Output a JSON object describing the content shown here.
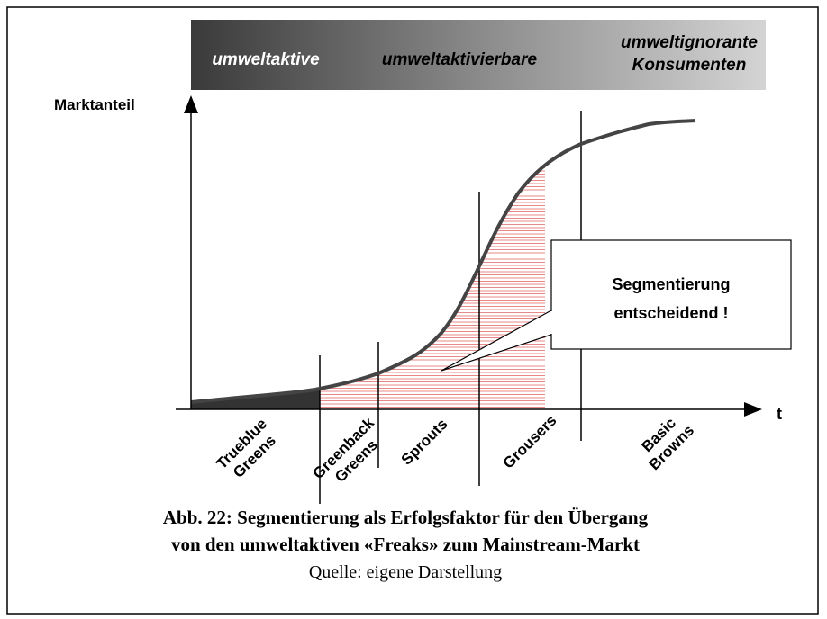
{
  "banner": {
    "groups": [
      [
        "umweltaktive"
      ],
      [
        "umweltaktivierbare"
      ],
      [
        "umweltignorante",
        "Konsumenten"
      ]
    ]
  },
  "axes": {
    "y_label": "Marktanteil",
    "x_label": "t"
  },
  "segments": [
    [
      "Trueblue",
      "Greens"
    ],
    [
      "Greenback",
      "Greens"
    ],
    [
      "Sprouts"
    ],
    [
      "Grousers"
    ],
    [
      "Basic",
      "Browns"
    ]
  ],
  "callout": [
    "Segmentierung",
    "entscheidend !"
  ],
  "caption": [
    "Abb. 22: Segmentierung als Erfolgsfaktor für den Übergang",
    "von den umweltaktiven «Freaks» zum Mainstream-Markt"
  ],
  "source": "Quelle: eigene Darstellung"
}
